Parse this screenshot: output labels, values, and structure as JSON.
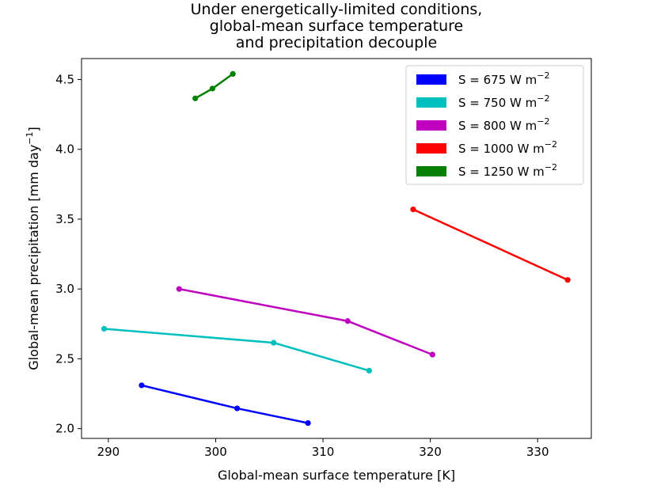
{
  "chart_data": {
    "type": "line",
    "title_lines": [
      "Under energetically-limited conditions,",
      "global-mean surface temperature",
      "and precipitation decouple"
    ],
    "xlabel": "Global-mean surface temperature [K]",
    "ylabel": "Global-mean precipitation [mm day",
    "ylabel_sup": "−1",
    "ylabel_end": "]",
    "xlim": [
      287.5,
      335.0
    ],
    "ylim": [
      1.93,
      4.65
    ],
    "xticks": [
      290,
      300,
      310,
      320,
      330
    ],
    "yticks": [
      2.0,
      2.5,
      3.0,
      3.5,
      4.0,
      4.5
    ],
    "ytick_labels": [
      "2.0",
      "2.5",
      "3.0",
      "3.5",
      "4.0",
      "4.5"
    ],
    "grid": false,
    "legend_position": "top-right",
    "series": [
      {
        "name": "S = 675 W m",
        "sup": "−2",
        "color": "#0000ff",
        "x": [
          293.1,
          302.0,
          308.6
        ],
        "y": [
          2.31,
          2.145,
          2.04
        ]
      },
      {
        "name": "S = 750 W m",
        "sup": "−2",
        "color": "#00bfbf",
        "x": [
          289.6,
          305.4,
          314.3
        ],
        "y": [
          2.715,
          2.615,
          2.415
        ]
      },
      {
        "name": "S = 800 W m",
        "sup": "−2",
        "color": "#bf00bf",
        "x": [
          296.6,
          312.3,
          320.2
        ],
        "y": [
          3.0,
          2.77,
          2.53
        ]
      },
      {
        "name": "S = 1000 W m",
        "sup": "−2",
        "color": "#ff0000",
        "x": [
          318.4,
          332.8
        ],
        "y": [
          3.57,
          3.065
        ]
      },
      {
        "name": "S = 1250 W m",
        "sup": "−2",
        "color": "#008000",
        "x": [
          298.1,
          299.7,
          301.6
        ],
        "y": [
          4.365,
          4.435,
          4.54
        ]
      }
    ]
  }
}
